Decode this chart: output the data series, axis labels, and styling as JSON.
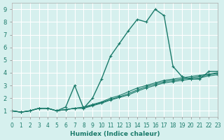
{
  "xlabel": "Humidex (Indice chaleur)",
  "ylabel": "",
  "bg_color": "#d6f0ee",
  "grid_color": "#ffffff",
  "line_color": "#1a7a6a",
  "xlim": [
    0,
    23
  ],
  "ylim": [
    0.5,
    9.5
  ],
  "xticks": [
    0,
    1,
    2,
    3,
    4,
    5,
    6,
    7,
    8,
    9,
    10,
    11,
    12,
    13,
    14,
    15,
    16,
    17,
    18,
    19,
    20,
    21,
    22,
    23
  ],
  "yticks": [
    1,
    2,
    3,
    4,
    5,
    6,
    7,
    8,
    9
  ],
  "lines": [
    {
      "x": [
        0,
        1,
        2,
        3,
        4,
        5,
        6,
        7,
        8,
        9,
        10,
        11,
        12,
        13,
        14,
        15,
        16,
        17,
        18,
        19,
        20,
        21,
        22,
        23
      ],
      "y": [
        1.0,
        0.9,
        1.0,
        1.2,
        1.2,
        1.0,
        1.3,
        3.0,
        1.2,
        2.0,
        3.5,
        5.3,
        6.3,
        7.3,
        8.2,
        8.0,
        9.0,
        8.5,
        4.5,
        3.7,
        3.5,
        3.5,
        4.1,
        4.1
      ]
    },
    {
      "x": [
        0,
        1,
        2,
        3,
        4,
        5,
        6,
        7,
        8,
        9,
        10,
        11,
        12,
        13,
        14,
        15,
        16,
        17,
        18,
        19,
        20,
        21,
        22,
        23
      ],
      "y": [
        1.0,
        0.9,
        1.0,
        1.2,
        1.2,
        1.0,
        1.1,
        1.2,
        1.3,
        1.5,
        1.7,
        2.0,
        2.2,
        2.5,
        2.8,
        3.0,
        3.2,
        3.4,
        3.5,
        3.6,
        3.7,
        3.8,
        3.9,
        4.0
      ]
    },
    {
      "x": [
        0,
        1,
        2,
        3,
        4,
        5,
        6,
        7,
        8,
        9,
        10,
        11,
        12,
        13,
        14,
        15,
        16,
        17,
        18,
        19,
        20,
        21,
        22,
        23
      ],
      "y": [
        1.0,
        0.9,
        1.0,
        1.2,
        1.2,
        1.0,
        1.1,
        1.2,
        1.25,
        1.45,
        1.65,
        1.9,
        2.1,
        2.35,
        2.65,
        2.9,
        3.1,
        3.3,
        3.4,
        3.5,
        3.6,
        3.7,
        3.85,
        3.95
      ]
    },
    {
      "x": [
        0,
        1,
        2,
        3,
        4,
        5,
        6,
        7,
        8,
        9,
        10,
        11,
        12,
        13,
        14,
        15,
        16,
        17,
        18,
        19,
        20,
        21,
        22,
        23
      ],
      "y": [
        1.0,
        0.9,
        1.0,
        1.2,
        1.2,
        1.0,
        1.1,
        1.2,
        1.2,
        1.4,
        1.6,
        1.85,
        2.05,
        2.25,
        2.55,
        2.8,
        3.0,
        3.2,
        3.3,
        3.4,
        3.5,
        3.6,
        3.75,
        3.85
      ]
    }
  ]
}
